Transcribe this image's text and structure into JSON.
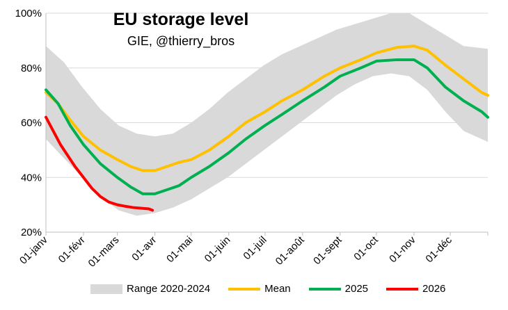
{
  "chart_data": {
    "type": "line",
    "title": "EU storage level",
    "subtitle": "GIE, @thierry_bros",
    "xlabel": "",
    "ylabel": "",
    "x_ticks": [
      "01-janv",
      "01-févr",
      "01-mars",
      "01-avr",
      "01-mai",
      "01-juin",
      "01-juil",
      "01-août",
      "01-sept",
      "01-oct",
      "01-nov",
      "01-déc"
    ],
    "x_tick_days": [
      0,
      31,
      59,
      90,
      120,
      151,
      181,
      212,
      243,
      273,
      304,
      334
    ],
    "x_range": [
      0,
      365
    ],
    "y_ticks": [
      "20%",
      "40%",
      "60%",
      "80%",
      "100%"
    ],
    "y_tick_values": [
      20,
      40,
      60,
      80,
      100
    ],
    "ylim": [
      20,
      100
    ],
    "grid": "horizontal",
    "legend_position": "bottom",
    "range": {
      "name": "Range 2020-2024",
      "color": "#d9d9d9",
      "x": [
        0,
        15,
        30,
        45,
        60,
        75,
        90,
        105,
        120,
        135,
        150,
        165,
        180,
        195,
        210,
        225,
        240,
        255,
        270,
        285,
        300,
        315,
        330,
        345,
        365
      ],
      "upper": [
        88,
        82,
        73,
        65,
        59,
        56,
        55,
        56,
        60,
        65,
        71,
        76,
        81,
        85,
        88,
        91,
        94,
        96,
        98,
        100,
        100,
        96,
        92,
        88,
        87
      ],
      "lower": [
        54,
        47,
        40,
        33,
        28,
        26,
        27,
        29,
        32,
        36,
        40,
        45,
        50,
        55,
        60,
        65,
        70,
        74,
        77,
        78,
        77,
        72,
        64,
        57,
        53
      ]
    },
    "series": [
      {
        "name": "Mean",
        "color": "#ffc000",
        "x": [
          0,
          10,
          20,
          31,
          45,
          59,
          70,
          80,
          90,
          100,
          110,
          120,
          135,
          151,
          165,
          181,
          195,
          212,
          230,
          243,
          260,
          273,
          290,
          304,
          315,
          330,
          345,
          360,
          365
        ],
        "values": [
          71,
          67,
          61,
          55,
          50,
          46.5,
          44,
          42.5,
          42.5,
          44,
          45.5,
          46.5,
          50,
          55,
          60,
          64,
          68,
          72,
          77,
          80,
          83,
          85.5,
          87.5,
          88,
          86.5,
          81,
          76,
          71,
          70
        ]
      },
      {
        "name": "2025",
        "color": "#00b050",
        "x": [
          0,
          10,
          20,
          31,
          45,
          59,
          70,
          80,
          90,
          100,
          110,
          120,
          135,
          151,
          165,
          181,
          195,
          212,
          230,
          243,
          260,
          273,
          290,
          304,
          315,
          330,
          345,
          360,
          365
        ],
        "values": [
          72,
          67,
          59,
          52,
          45,
          40,
          36.5,
          34,
          34,
          35.5,
          37,
          40,
          44,
          49,
          54,
          59,
          63,
          68,
          73,
          77,
          80,
          82.5,
          83,
          83,
          80,
          73,
          68,
          64,
          62
        ]
      },
      {
        "name": "2026",
        "color": "#ff0000",
        "x": [
          0,
          6,
          12,
          18,
          24,
          31,
          38,
          45,
          52,
          59,
          65,
          72,
          80,
          85,
          88
        ],
        "values": [
          62,
          57,
          52,
          48,
          44,
          40,
          36,
          33,
          31,
          30,
          29.5,
          29,
          28.7,
          28.5,
          28
        ]
      }
    ]
  }
}
